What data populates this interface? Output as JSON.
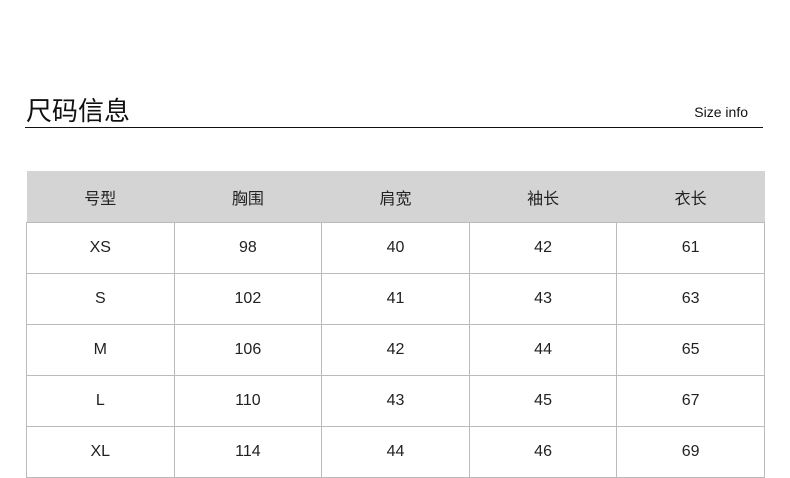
{
  "header": {
    "title": "尺码信息",
    "subtitle": "Size info"
  },
  "table": {
    "columns": [
      "号型",
      "胸围",
      "肩宽",
      "袖长",
      "衣长"
    ],
    "rows": [
      [
        "XS",
        "98",
        "40",
        "42",
        "61"
      ],
      [
        "S",
        "102",
        "41",
        "43",
        "63"
      ],
      [
        "M",
        "106",
        "42",
        "44",
        "65"
      ],
      [
        "L",
        "110",
        "43",
        "45",
        "67"
      ],
      [
        "XL",
        "114",
        "44",
        "46",
        "69"
      ]
    ]
  }
}
